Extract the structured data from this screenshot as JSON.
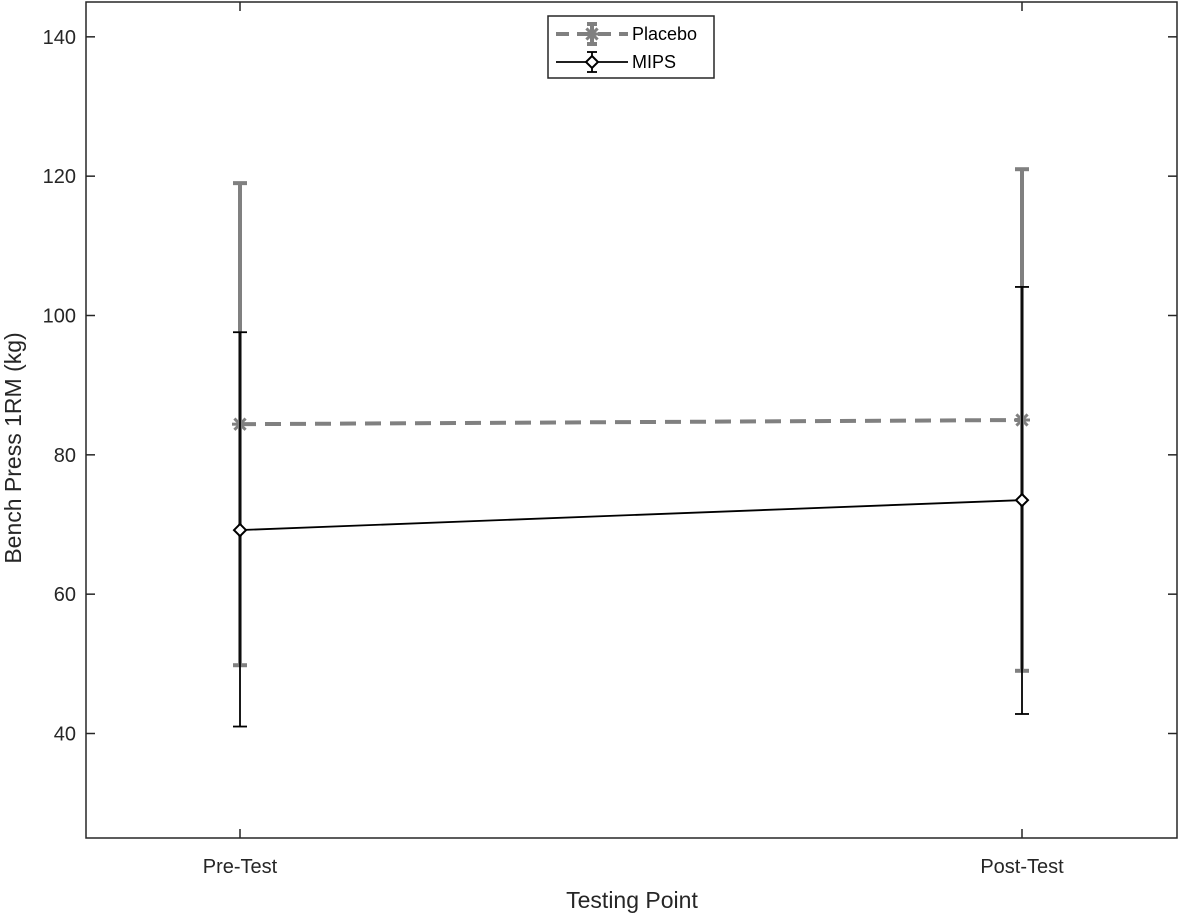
{
  "chart_data": {
    "type": "line",
    "title": "",
    "xlabel": "Testing Point",
    "ylabel": "Bench Press 1RM (kg)",
    "categories": [
      "Pre-Test",
      "Post-Test"
    ],
    "ylim": [
      25,
      145
    ],
    "yticks": [
      40,
      60,
      80,
      100,
      120,
      140
    ],
    "grid": false,
    "legend_position": "top-center",
    "series": [
      {
        "name": "Placebo",
        "values": [
          84.4,
          85.0
        ],
        "error_lower": [
          49.8,
          49.0
        ],
        "error_upper": [
          119.0,
          121.0
        ],
        "color": "#808080",
        "line_style": "dashed",
        "marker": "asterisk"
      },
      {
        "name": "MIPS",
        "values": [
          69.2,
          73.5
        ],
        "error_lower": [
          41.0,
          42.8
        ],
        "error_upper": [
          97.6,
          104.1
        ],
        "color": "#000000",
        "line_style": "solid",
        "marker": "diamond"
      }
    ]
  }
}
